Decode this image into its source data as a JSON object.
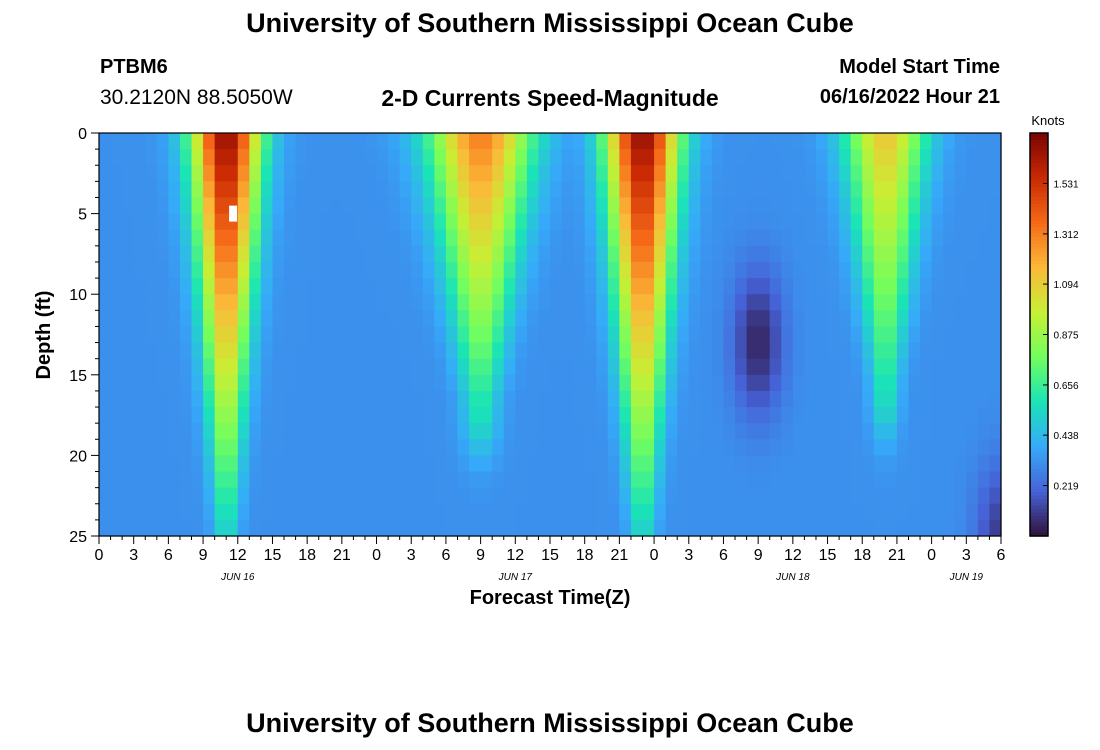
{
  "header": {
    "title": "University of Southern Mississippi Ocean Cube",
    "station_id": "PTBM6",
    "station_coords": "30.2120N  88.5050W",
    "chart_subtitle": "2-D Currents Speed-Magnitude",
    "model_start_label": "Model Start Time",
    "model_start_value": "06/16/2022 Hour 21"
  },
  "footer": {
    "title": "University of Southern Mississippi Ocean Cube"
  },
  "colors": {
    "colormap": [
      "#30123b",
      "#4662d7",
      "#36aaf9",
      "#1ae4b6",
      "#72fe5e",
      "#c7ef34",
      "#fbb938",
      "#f56918",
      "#c92903",
      "#7a0403"
    ],
    "marker": "#ffffff"
  },
  "chart_data": {
    "type": "heatmap",
    "title": "2-D Currents Speed-Magnitude",
    "xlabel": "Forecast Time(Z)",
    "ylabel": "Depth (ft)",
    "x_tick_labels": [
      "0",
      "3",
      "6",
      "9",
      "12",
      "15",
      "18",
      "21",
      "0",
      "3",
      "6",
      "9",
      "12",
      "15",
      "18",
      "21",
      "0",
      "3",
      "6",
      "9",
      "12",
      "15",
      "18",
      "21",
      "0",
      "3",
      "6"
    ],
    "x_tick_hours": [
      0,
      3,
      6,
      9,
      12,
      15,
      18,
      21,
      24,
      27,
      30,
      33,
      36,
      39,
      42,
      45,
      48,
      51,
      54,
      57,
      60,
      63,
      66,
      69,
      72,
      75,
      78
    ],
    "date_labels": [
      {
        "label": "JUN 16",
        "hour": 12
      },
      {
        "label": "JUN 17",
        "hour": 36
      },
      {
        "label": "JUN 18",
        "hour": 60
      },
      {
        "label": "JUN 19",
        "hour": 75
      }
    ],
    "xlim": [
      0,
      78
    ],
    "y_ticks": [
      0,
      5,
      10,
      15,
      20,
      25
    ],
    "ylim": [
      0,
      25
    ],
    "y_inverted": true,
    "colorbar": {
      "title": "Knots",
      "ticks": [
        "1.531",
        "1.312",
        "1.094",
        "0.875",
        "0.656",
        "0.438",
        "0.219"
      ],
      "tick_values": [
        1.531,
        1.312,
        1.094,
        0.875,
        0.656,
        0.438,
        0.219
      ],
      "vmin": 0.0,
      "vmax": 1.75
    },
    "features": [
      {
        "type": "max",
        "hour_center": 11,
        "hour_width": 3.0,
        "depth_top": 0,
        "depth_bottom": 25,
        "peak_knots": 1.7,
        "bottom_knots": 0.55
      },
      {
        "type": "max",
        "hour_center": 33,
        "hour_width": 4.5,
        "depth_top": 0,
        "depth_bottom": 17,
        "peak_knots": 1.32,
        "bottom_knots": 0.6
      },
      {
        "type": "max",
        "hour_center": 47,
        "hour_width": 3.2,
        "depth_top": 0,
        "depth_bottom": 25,
        "peak_knots": 1.7,
        "bottom_knots": 0.55
      },
      {
        "type": "max",
        "hour_center": 68,
        "hour_width": 3.5,
        "depth_top": 0,
        "depth_bottom": 16,
        "peak_knots": 1.12,
        "bottom_knots": 0.6
      },
      {
        "type": "min",
        "hour_center": 57,
        "depth_center": 13,
        "min_knots": 0.05
      },
      {
        "type": "min",
        "hour_center": 78,
        "depth_center": 25,
        "min_knots": 0.1
      }
    ],
    "background_knots": 0.32,
    "marker": {
      "hour": 11.6,
      "depth": 5
    }
  }
}
